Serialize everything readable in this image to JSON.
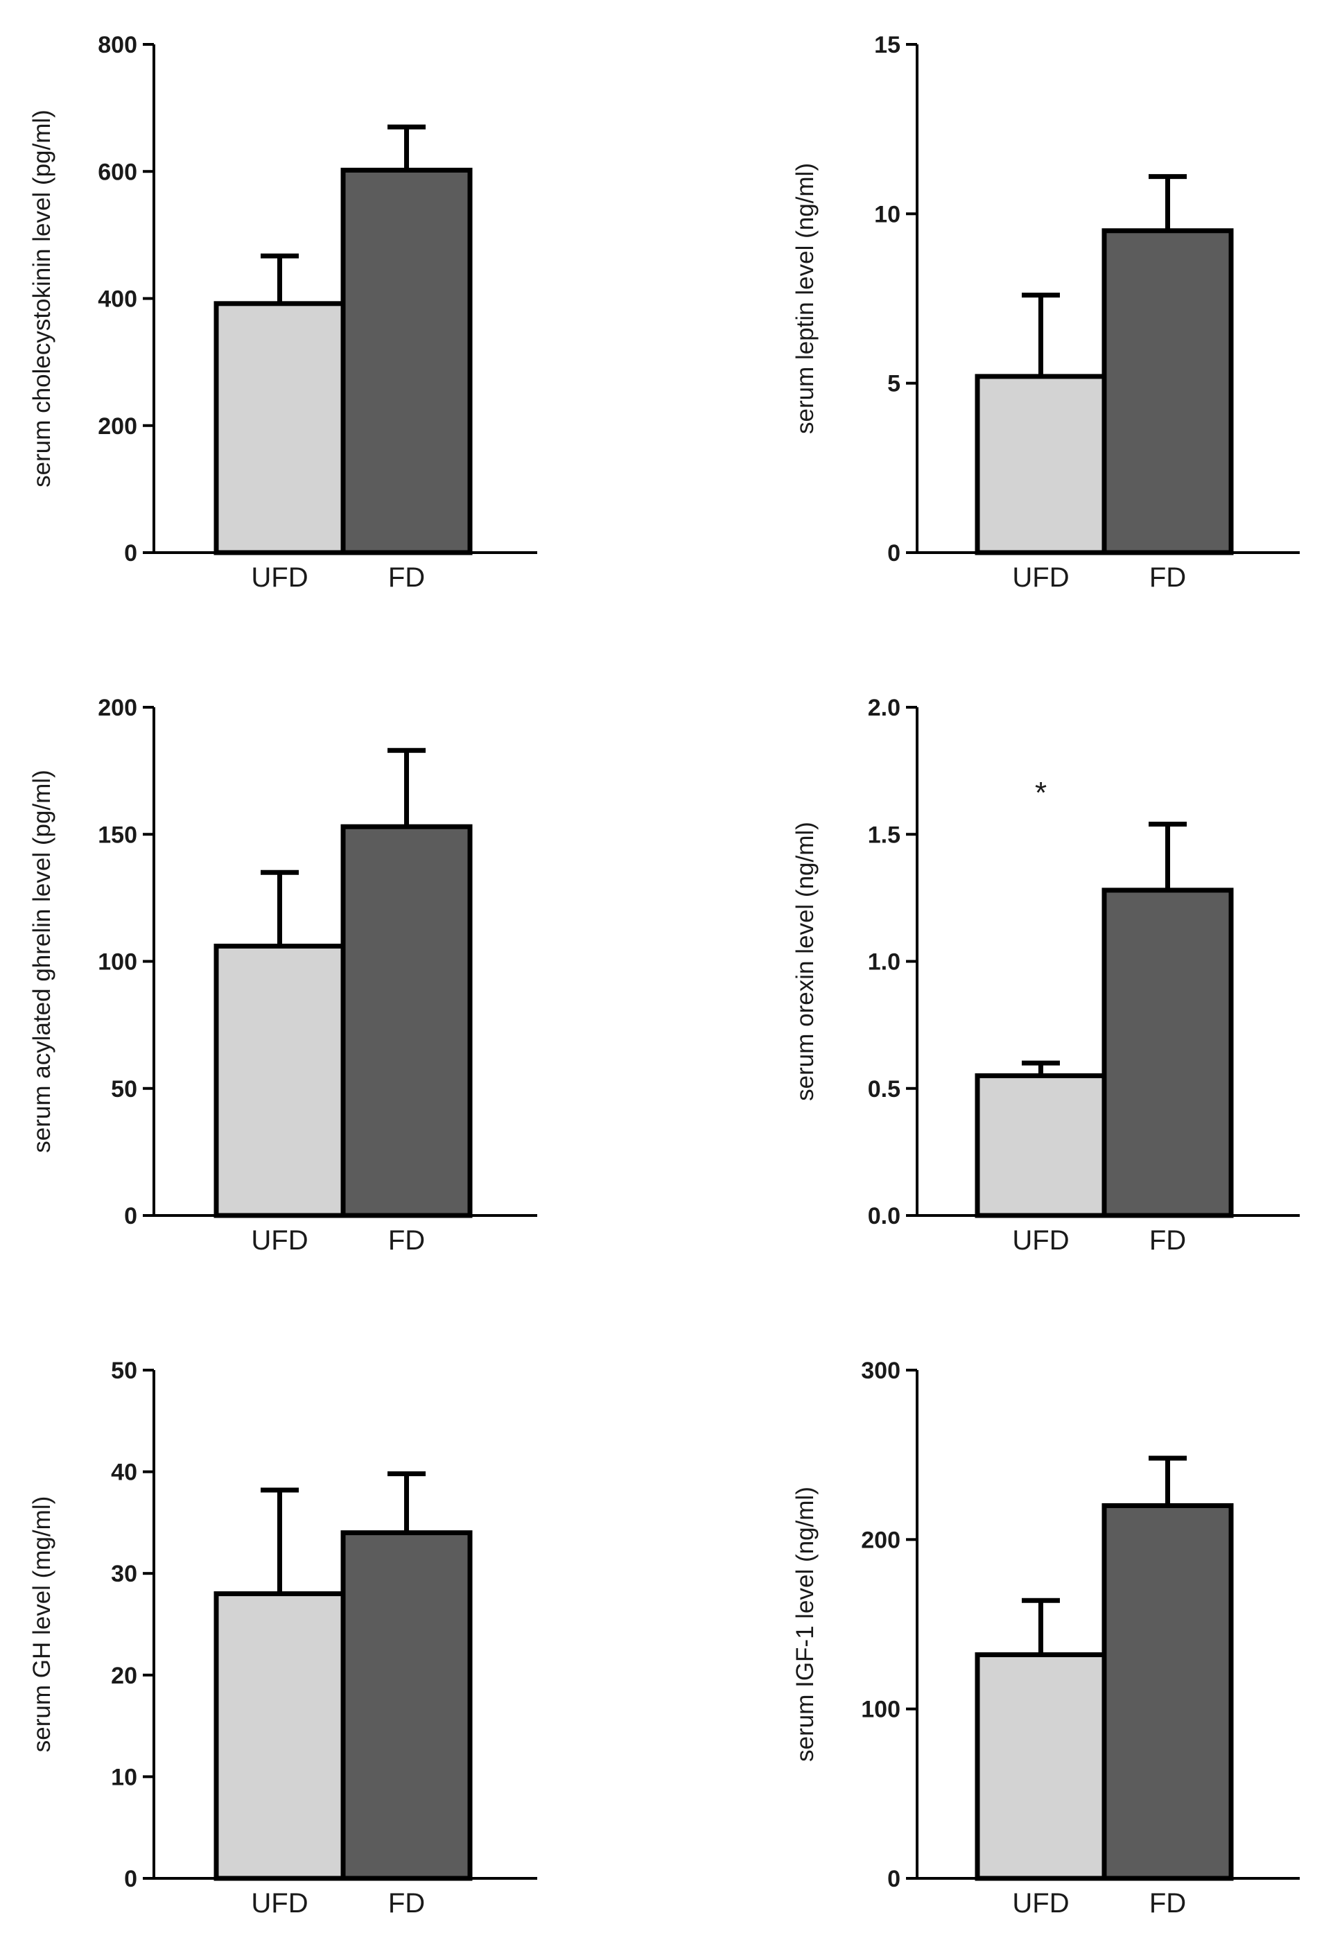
{
  "figure_title": "",
  "colors": {
    "UFD": "#d3d3d3",
    "FD": "#5c5c5c",
    "axis": "#000000"
  },
  "chart_data": [
    {
      "type": "bar",
      "title": "",
      "xlabel": "",
      "ylabel": "serum cholecystokinin level  (pg/ml)",
      "ylim": [
        0,
        800
      ],
      "yticks": [
        0,
        200,
        400,
        600,
        800
      ],
      "ytick_labels": [
        "0",
        "200",
        "400",
        "600",
        "800"
      ],
      "categories": [
        "UFD",
        "FD"
      ],
      "values": [
        392,
        602
      ],
      "errors": [
        75,
        68
      ],
      "annotations": []
    },
    {
      "type": "bar",
      "title": "",
      "xlabel": "",
      "ylabel": "serum leptin level (ng/ml)",
      "ylim": [
        0,
        15
      ],
      "yticks": [
        0,
        5,
        10,
        15
      ],
      "ytick_labels": [
        "0",
        "5",
        "10",
        "15"
      ],
      "categories": [
        "UFD",
        "FD"
      ],
      "values": [
        5.2,
        9.5
      ],
      "errors": [
        2.4,
        1.6
      ],
      "annotations": []
    },
    {
      "type": "bar",
      "title": "",
      "xlabel": "",
      "ylabel": "serum acylated ghrelin level (pg/ml)",
      "ylim": [
        0,
        200
      ],
      "yticks": [
        0,
        50,
        100,
        150,
        200
      ],
      "ytick_labels": [
        "0",
        "50",
        "100",
        "150",
        "200"
      ],
      "categories": [
        "UFD",
        "FD"
      ],
      "values": [
        106,
        153
      ],
      "errors": [
        29,
        30
      ],
      "annotations": []
    },
    {
      "type": "bar",
      "title": "",
      "xlabel": "",
      "ylabel": "serum orexin level (ng/ml)",
      "ylim": [
        0,
        2.0
      ],
      "yticks": [
        0,
        0.5,
        1.0,
        1.5,
        2.0
      ],
      "ytick_labels": [
        "0.0",
        "0.5",
        "1.0",
        "1.5",
        "2.0"
      ],
      "categories": [
        "UFD",
        "FD"
      ],
      "values": [
        0.55,
        1.28
      ],
      "errors": [
        0.05,
        0.26
      ],
      "annotations": [
        {
          "text": "*",
          "x": "UFD",
          "y": 1.7
        }
      ]
    },
    {
      "type": "bar",
      "title": "",
      "xlabel": "",
      "ylabel": "serum GH level (mg/ml)",
      "ylim": [
        0,
        50
      ],
      "yticks": [
        0,
        10,
        20,
        30,
        40,
        50
      ],
      "ytick_labels": [
        "0",
        "10",
        "20",
        "30",
        "40",
        "50"
      ],
      "categories": [
        "UFD",
        "FD"
      ],
      "values": [
        28,
        34
      ],
      "errors": [
        10.2,
        5.8
      ],
      "annotations": []
    },
    {
      "type": "bar",
      "title": "",
      "xlabel": "",
      "ylabel": "serum IGF-1 level (ng/ml)",
      "ylim": [
        0,
        300
      ],
      "yticks": [
        0,
        100,
        200,
        300
      ],
      "ytick_labels": [
        "0",
        "100",
        "200",
        "300"
      ],
      "categories": [
        "UFD",
        "FD"
      ],
      "values": [
        132,
        220
      ],
      "errors": [
        32,
        28
      ],
      "annotations": []
    }
  ]
}
